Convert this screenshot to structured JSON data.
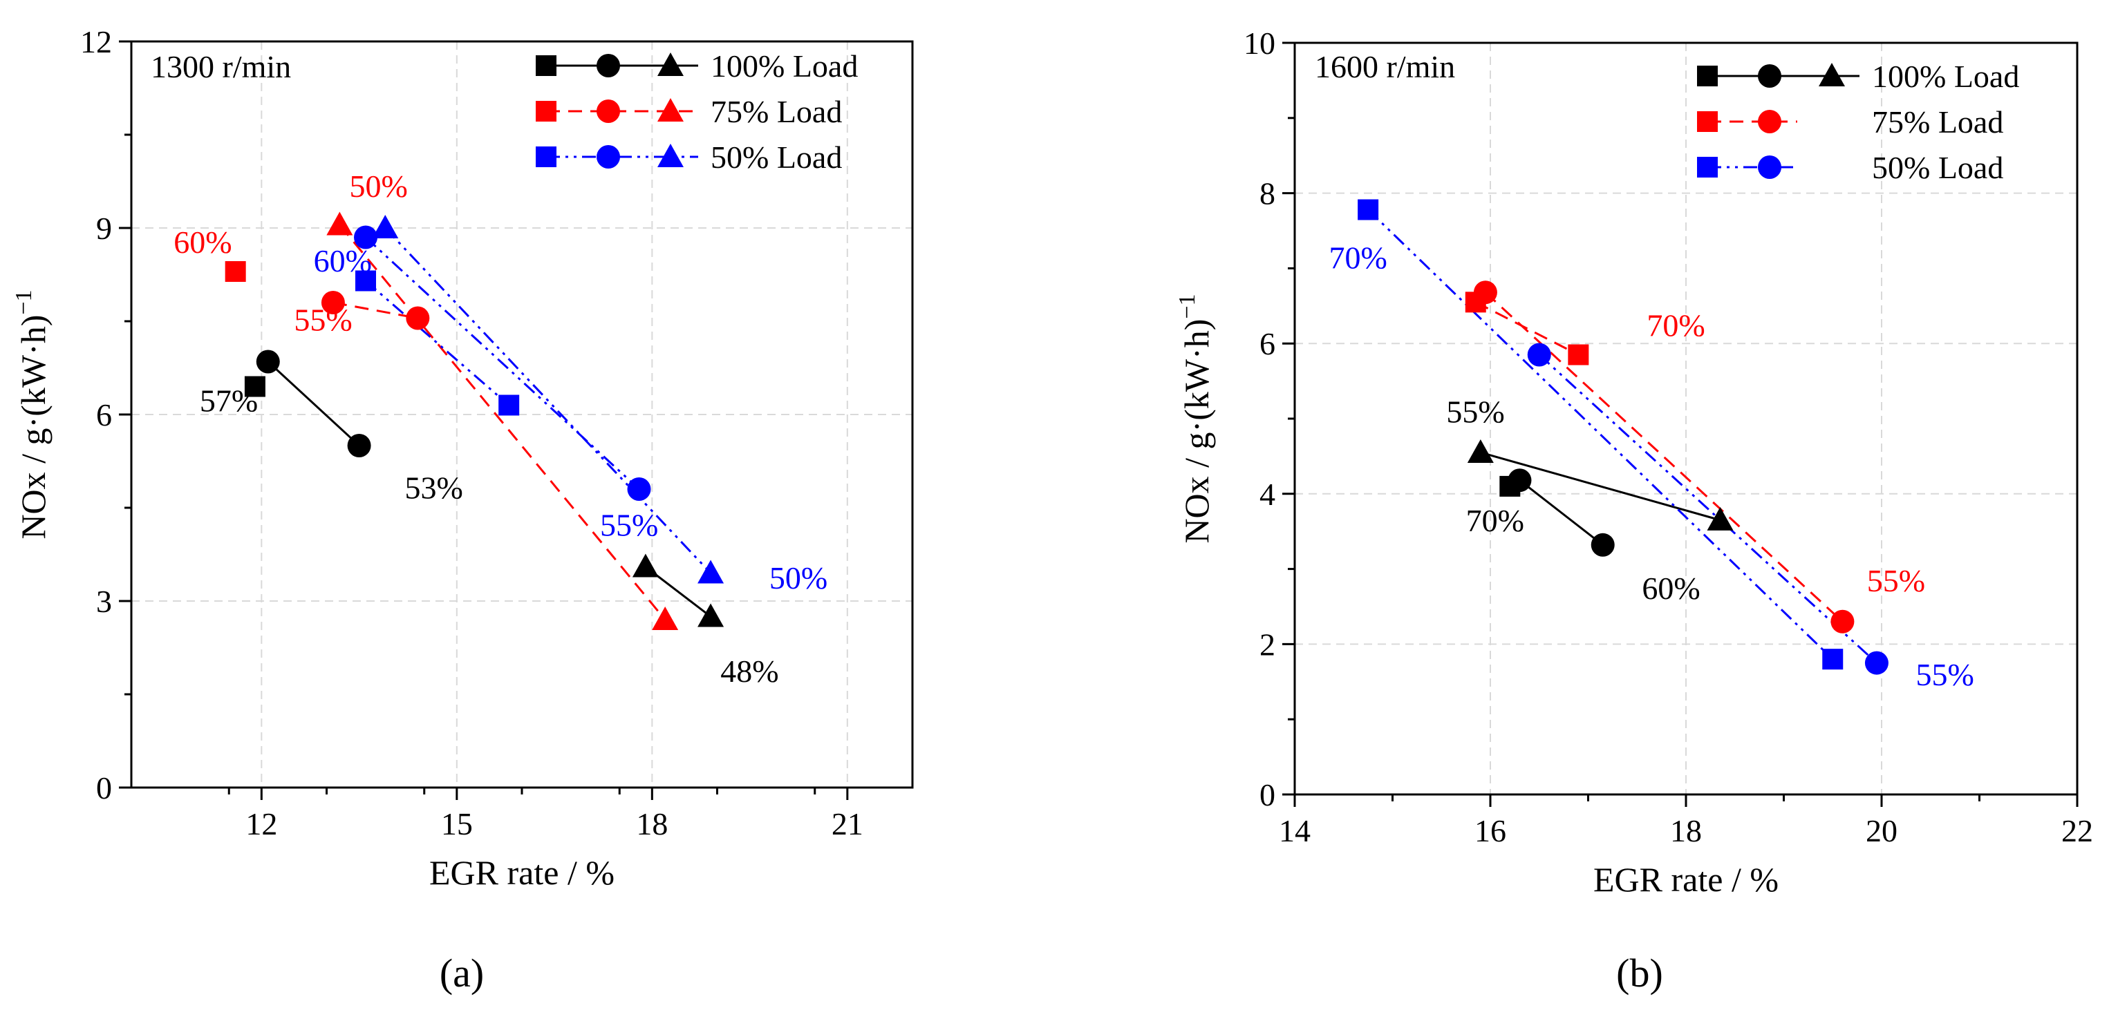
{
  "figure": {
    "panel_labels": [
      "(a)",
      "(b)"
    ]
  },
  "colors": {
    "black": "#000000",
    "red": "#ff0000",
    "blue": "#0000ff",
    "grid": "#d9d9d9"
  },
  "chart_data": [
    {
      "type": "scatter",
      "title": "",
      "annotation": "1300 r/min",
      "xlabel": "EGR rate / %",
      "ylabel": "NOx / g·(kW·h)",
      "ylabel_superscript": "−1",
      "xlim": [
        10,
        22
      ],
      "ylim": [
        0,
        12
      ],
      "xticks": [
        12,
        15,
        18,
        21
      ],
      "yticks": [
        0,
        3,
        6,
        9,
        12
      ],
      "grid": true,
      "legend_position": "top-right",
      "legend": [
        {
          "label": "100% Load",
          "color": "#000000",
          "dash": "solid",
          "markers": [
            "square",
            "circle",
            "triangle"
          ]
        },
        {
          "label": "75% Load",
          "color": "#ff0000",
          "dash": "dash",
          "markers": [
            "square",
            "circle",
            "triangle"
          ]
        },
        {
          "label": "50% Load",
          "color": "#0000ff",
          "dash": "dashdotdot",
          "markers": [
            "square",
            "circle",
            "triangle"
          ]
        }
      ],
      "series": [
        {
          "name": "100% Load square",
          "color": "#000000",
          "marker": "square",
          "points": [
            [
              11.9,
              6.45
            ]
          ]
        },
        {
          "name": "100% Load circle",
          "color": "#000000",
          "marker": "circle",
          "points": [
            [
              12.1,
              6.85
            ],
            [
              13.5,
              5.5
            ]
          ]
        },
        {
          "name": "100% Load triangle",
          "color": "#000000",
          "marker": "triangle",
          "points": [
            [
              17.9,
              3.55
            ],
            [
              18.9,
              2.75
            ]
          ]
        },
        {
          "name": "75% Load square",
          "color": "#ff0000",
          "marker": "square",
          "points": [
            [
              11.6,
              8.3
            ]
          ]
        },
        {
          "name": "75% Load circle",
          "color": "#ff0000",
          "marker": "circle",
          "points": [
            [
              13.1,
              7.8
            ],
            [
              14.4,
              7.55
            ]
          ]
        },
        {
          "name": "75% Load triangle",
          "color": "#ff0000",
          "marker": "triangle",
          "points": [
            [
              13.2,
              9.05
            ],
            [
              18.2,
              2.7
            ]
          ]
        },
        {
          "name": "50% Load square",
          "color": "#0000ff",
          "marker": "square",
          "points": [
            [
              13.6,
              8.15
            ],
            [
              15.8,
              6.15
            ]
          ]
        },
        {
          "name": "50% Load circle",
          "color": "#0000ff",
          "marker": "circle",
          "points": [
            [
              13.6,
              8.85
            ],
            [
              17.8,
              4.8
            ]
          ]
        },
        {
          "name": "50% Load triangle",
          "color": "#0000ff",
          "marker": "triangle",
          "points": [
            [
              13.9,
              9.0
            ],
            [
              18.9,
              3.45
            ]
          ]
        }
      ],
      "lines": [
        {
          "color": "#000000",
          "dash": "solid",
          "points": [
            [
              12.1,
              6.85
            ],
            [
              13.5,
              5.5
            ]
          ]
        },
        {
          "color": "#000000",
          "dash": "solid",
          "points": [
            [
              17.9,
              3.55
            ],
            [
              18.9,
              2.75
            ]
          ]
        },
        {
          "color": "#ff0000",
          "dash": "dash",
          "points": [
            [
              13.1,
              7.8
            ],
            [
              14.4,
              7.55
            ]
          ]
        },
        {
          "color": "#ff0000",
          "dash": "dash",
          "points": [
            [
              13.2,
              9.05
            ],
            [
              18.2,
              2.7
            ]
          ]
        },
        {
          "color": "#0000ff",
          "dash": "dashdotdot",
          "points": [
            [
              13.6,
              8.15
            ],
            [
              15.8,
              6.15
            ]
          ]
        },
        {
          "color": "#0000ff",
          "dash": "dashdotdot",
          "points": [
            [
              13.6,
              8.85
            ],
            [
              17.8,
              4.8
            ]
          ]
        },
        {
          "color": "#0000ff",
          "dash": "dashdotdot",
          "points": [
            [
              13.9,
              9.0
            ],
            [
              18.9,
              3.45
            ]
          ]
        }
      ],
      "annotations": [
        {
          "text": "57%",
          "color": "#000000",
          "at": [
            11.05,
            6.05
          ]
        },
        {
          "text": "53%",
          "color": "#000000",
          "at": [
            14.2,
            4.65
          ]
        },
        {
          "text": "48%",
          "color": "#000000",
          "at": [
            19.05,
            1.7
          ]
        },
        {
          "text": "60%",
          "color": "#ff0000",
          "at": [
            10.65,
            8.6
          ]
        },
        {
          "text": "50%",
          "color": "#ff0000",
          "at": [
            13.35,
            9.5
          ]
        },
        {
          "text": "55%",
          "color": "#ff0000",
          "at": [
            12.5,
            7.35
          ]
        },
        {
          "text": "60%",
          "color": "#0000ff",
          "at": [
            12.8,
            8.3
          ]
        },
        {
          "text": "55%",
          "color": "#0000ff",
          "at": [
            17.2,
            4.05
          ]
        },
        {
          "text": "50%",
          "color": "#0000ff",
          "at": [
            19.8,
            3.2
          ]
        }
      ]
    },
    {
      "type": "scatter",
      "title": "",
      "annotation": "1600 r/min",
      "xlabel": "EGR rate / %",
      "ylabel": "NOx / g·(kW·h)",
      "ylabel_superscript": "−1",
      "xlim": [
        14,
        22
      ],
      "ylim": [
        0,
        10
      ],
      "xticks": [
        14,
        16,
        18,
        20,
        22
      ],
      "yticks": [
        0,
        2,
        4,
        6,
        8,
        10
      ],
      "grid": true,
      "legend_position": "top-right",
      "legend": [
        {
          "label": "100% Load",
          "color": "#000000",
          "dash": "solid",
          "markers": [
            "square",
            "circle",
            "triangle"
          ]
        },
        {
          "label": "75% Load",
          "color": "#ff0000",
          "dash": "dash",
          "markers": [
            "square",
            "circle"
          ]
        },
        {
          "label": "50% Load",
          "color": "#0000ff",
          "dash": "dashdotdot",
          "markers": [
            "square",
            "circle"
          ]
        }
      ],
      "series": [
        {
          "name": "100% Load square",
          "color": "#000000",
          "marker": "square",
          "points": [
            [
              16.2,
              4.1
            ]
          ]
        },
        {
          "name": "100% Load circle",
          "color": "#000000",
          "marker": "circle",
          "points": [
            [
              16.3,
              4.18
            ],
            [
              17.15,
              3.32
            ]
          ]
        },
        {
          "name": "100% Load triangle",
          "color": "#000000",
          "marker": "triangle",
          "points": [
            [
              15.9,
              4.55
            ],
            [
              18.35,
              3.65
            ]
          ]
        },
        {
          "name": "75% Load square",
          "color": "#ff0000",
          "marker": "square",
          "points": [
            [
              15.85,
              6.55
            ],
            [
              16.9,
              5.85
            ]
          ]
        },
        {
          "name": "75% Load circle",
          "color": "#ff0000",
          "marker": "circle",
          "points": [
            [
              15.95,
              6.68
            ],
            [
              19.6,
              2.3
            ]
          ]
        },
        {
          "name": "50% Load square",
          "color": "#0000ff",
          "marker": "square",
          "points": [
            [
              14.75,
              7.78
            ],
            [
              19.5,
              1.8
            ]
          ]
        },
        {
          "name": "50% Load circle",
          "color": "#0000ff",
          "marker": "circle",
          "points": [
            [
              16.5,
              5.85
            ],
            [
              19.95,
              1.75
            ]
          ]
        }
      ],
      "lines": [
        {
          "color": "#000000",
          "dash": "solid",
          "points": [
            [
              16.3,
              4.18
            ],
            [
              17.15,
              3.32
            ]
          ]
        },
        {
          "color": "#000000",
          "dash": "solid",
          "points": [
            [
              15.9,
              4.55
            ],
            [
              18.35,
              3.65
            ]
          ]
        },
        {
          "color": "#ff0000",
          "dash": "dash",
          "points": [
            [
              15.85,
              6.55
            ],
            [
              16.9,
              5.85
            ]
          ]
        },
        {
          "color": "#ff0000",
          "dash": "dash",
          "points": [
            [
              15.95,
              6.68
            ],
            [
              19.6,
              2.3
            ]
          ]
        },
        {
          "color": "#0000ff",
          "dash": "dashdotdot",
          "points": [
            [
              14.75,
              7.78
            ],
            [
              19.5,
              1.8
            ]
          ]
        },
        {
          "color": "#0000ff",
          "dash": "dashdotdot",
          "points": [
            [
              16.5,
              5.85
            ],
            [
              19.95,
              1.75
            ]
          ]
        }
      ],
      "annotations": [
        {
          "text": "70%",
          "color": "#0000ff",
          "at": [
            14.35,
            7.0
          ]
        },
        {
          "text": "70%",
          "color": "#ff0000",
          "at": [
            17.6,
            6.1
          ]
        },
        {
          "text": "55%",
          "color": "#000000",
          "at": [
            15.55,
            4.95
          ]
        },
        {
          "text": "70%",
          "color": "#000000",
          "at": [
            15.75,
            3.5
          ]
        },
        {
          "text": "60%",
          "color": "#000000",
          "at": [
            17.55,
            2.6
          ]
        },
        {
          "text": "55%",
          "color": "#ff0000",
          "at": [
            19.85,
            2.7
          ]
        },
        {
          "text": "55%",
          "color": "#0000ff",
          "at": [
            20.35,
            1.45
          ]
        }
      ]
    }
  ]
}
